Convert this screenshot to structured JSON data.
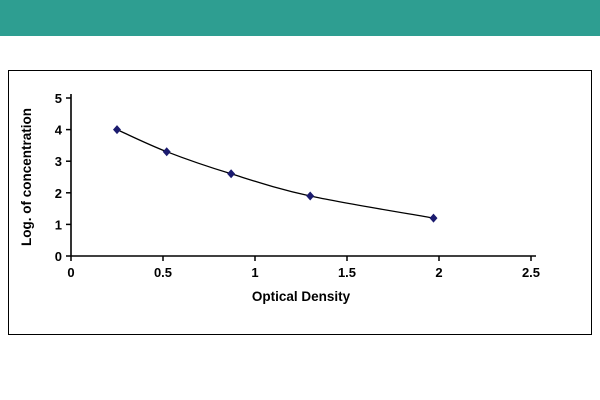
{
  "page": {
    "background": "#ffffff",
    "top_bar_color": "#2e9e91"
  },
  "chart_data": {
    "type": "line",
    "title": "",
    "xlabel": "Optical Density",
    "ylabel": "Log. of concentration",
    "x": [
      0.25,
      0.52,
      0.87,
      1.3,
      1.97
    ],
    "y": [
      4.0,
      3.3,
      2.6,
      1.9,
      1.2
    ],
    "xlim": [
      0,
      2.5
    ],
    "ylim": [
      0,
      5
    ],
    "xticks": [
      0,
      0.5,
      1,
      1.5,
      2,
      2.5
    ],
    "xtick_labels": [
      "0",
      "0.5",
      "1",
      "1.5",
      "2",
      "2.5"
    ],
    "yticks": [
      0,
      1,
      2,
      3,
      4,
      5
    ],
    "ytick_labels": [
      "0",
      "1",
      "2",
      "3",
      "4",
      "5"
    ],
    "grid": false,
    "legend": "none",
    "marker": "diamond",
    "marker_color": "#1b1b6f",
    "line_color": "#000000"
  }
}
